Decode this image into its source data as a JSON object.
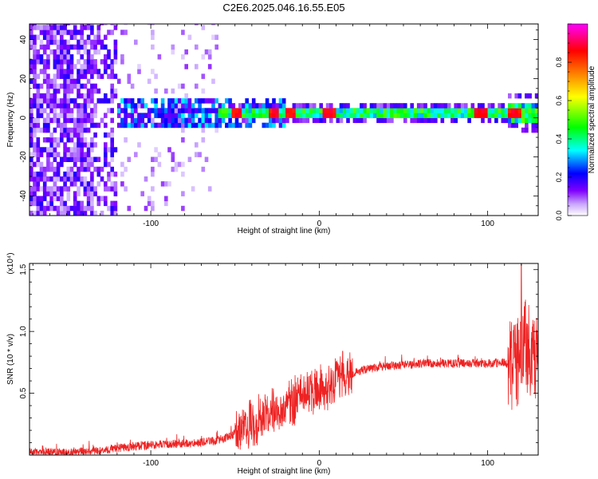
{
  "title": "C2E6.2025.046.16.55.E05",
  "chart_data": [
    {
      "type": "heatmap",
      "xlabel": "Height of straight line (km)",
      "ylabel": "Frequency (Hz)",
      "xlim": [
        -172,
        130
      ],
      "ylim": [
        -50,
        48
      ],
      "x_ticks": [
        -100,
        0,
        100
      ],
      "y_ticks": [
        -40,
        -20,
        0,
        20,
        40
      ],
      "colorbar": {
        "label": "Normalized spectral amplitude",
        "range": [
          0.0,
          1.0
        ],
        "ticks": [
          0.0,
          0.2,
          0.4,
          0.6,
          0.8
        ],
        "colormap": [
          "#ffffff",
          "#7f00ff",
          "#0000ff",
          "#00ffff",
          "#00ff00",
          "#ffff00",
          "#ff8000",
          "#ff0000",
          "#ff00ff"
        ]
      },
      "features": {
        "noise_region_x": [
          -172,
          -120
        ],
        "band_center_hz": 1,
        "band_half_width_hz": 3,
        "band_start_x": -60,
        "strongest_x": [
          -50,
          -28,
          -18,
          5,
          95,
          115
        ]
      },
      "grid": false
    },
    {
      "type": "line",
      "xlabel": "Height of straight line (km)",
      "ylabel": "SNR (10 * v/v)",
      "y_multiplier": "(x10⁴)",
      "xlim": [
        -172,
        130
      ],
      "ylim": [
        0,
        1.55
      ],
      "x_ticks": [
        -100,
        0,
        100
      ],
      "y_ticks": [
        0.5,
        1.0,
        1.5
      ],
      "y_tick_labels": [
        "0.5",
        "1.0",
        "1.5"
      ],
      "line_color": "#ee2222",
      "series": [
        {
          "x": [
            -172,
            -150,
            -130,
            -110,
            -90,
            -70,
            -60,
            -50,
            -40,
            -30,
            -20,
            -10,
            0,
            10,
            20,
            30,
            40,
            50,
            60,
            70,
            80,
            90,
            100,
            110,
            113,
            118,
            122,
            126,
            130
          ],
          "y": [
            0.02,
            0.02,
            0.04,
            0.07,
            0.09,
            0.1,
            0.12,
            0.17,
            0.25,
            0.33,
            0.4,
            0.47,
            0.53,
            0.6,
            0.66,
            0.7,
            0.72,
            0.73,
            0.74,
            0.74,
            0.74,
            0.74,
            0.74,
            0.75,
            0.72,
            0.75,
            0.9,
            0.8,
            0.78
          ]
        }
      ],
      "spikes": [
        {
          "x": 14,
          "y": 0.84
        },
        {
          "x": 120,
          "y": 1.55
        }
      ],
      "grid": false
    }
  ]
}
